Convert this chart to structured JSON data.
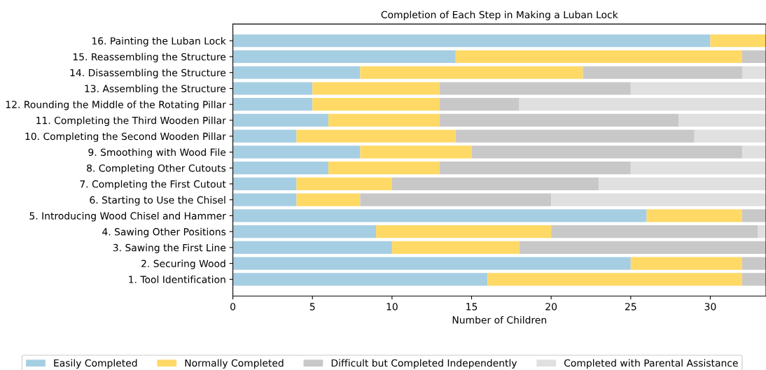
{
  "chart_data": {
    "type": "bar",
    "orientation": "horizontal",
    "stacked": true,
    "title": "Completion of Each Step in Making a Luban Lock",
    "xlabel": "Number of Children",
    "categories": [
      "16. Painting the Luban Lock",
      "15. Reassembling the Structure",
      "14. Disassembling the Structure",
      "13. Assembling the Structure",
      "12. Rounding the Middle of the Rotating Pillar",
      "11. Completing the Third Wooden Pillar",
      "10. Completing the Second Wooden Pillar",
      "9. Smoothing with Wood File",
      "8. Completing Other Cutouts",
      "7. Completing the First Cutout",
      "6. Starting to Use the Chisel",
      "5. Introducing Wood Chisel and Hammer",
      "4. Sawing Other Positions",
      "3. Sawing the First Line",
      "2. Securing Wood",
      "1. Tool Identification"
    ],
    "series": [
      {
        "name": "Easily Completed",
        "color": "#a6cee3",
        "values": [
          30,
          14,
          8,
          5,
          5,
          6,
          4,
          8,
          6,
          4,
          4,
          26,
          9,
          10,
          25,
          16
        ]
      },
      {
        "name": "Normally Completed",
        "color": "#ffd966",
        "values": [
          3.5,
          18,
          14,
          8,
          8,
          7,
          10,
          7,
          7,
          6,
          4,
          6,
          11,
          8,
          7,
          16
        ]
      },
      {
        "name": "Difficult but Completed Independently",
        "color": "#c8c8c8",
        "values": [
          0,
          1.5,
          10,
          12,
          5,
          15,
          15,
          17,
          12,
          13,
          12,
          1.5,
          13,
          15.5,
          1.5,
          1.5
        ]
      },
      {
        "name": "Completed with Parental Assistance",
        "color": "#e0e0e0",
        "values": [
          0,
          0,
          1.5,
          8.5,
          15.5,
          5.5,
          4.5,
          1.5,
          8.5,
          10.5,
          13.5,
          0,
          0.5,
          0,
          0,
          0
        ]
      }
    ],
    "xlim": [
      0,
      33.5
    ],
    "xticks": [
      0,
      5,
      10,
      15,
      20,
      25,
      30
    ],
    "grid": false,
    "legend": "bottom"
  }
}
